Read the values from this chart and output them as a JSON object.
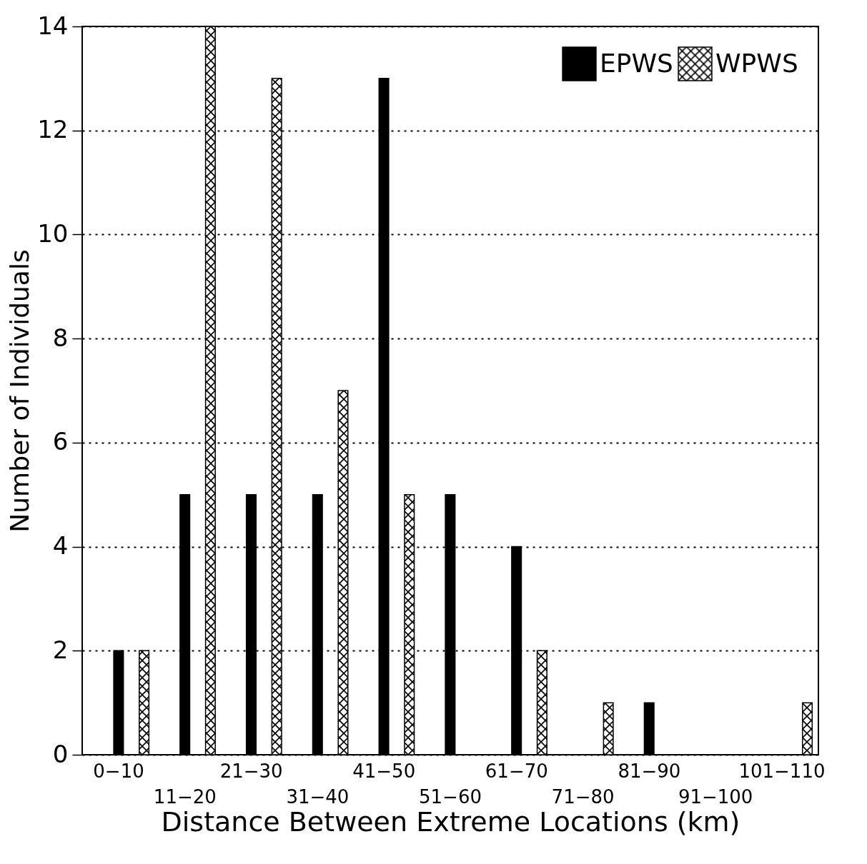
{
  "chart_data": {
    "type": "bar",
    "xlabel": "Distance Between Extreme Locations (km)",
    "ylabel": "Number of Individuals",
    "categories": [
      "0−10",
      "11−20",
      "21−30",
      "31−40",
      "41−50",
      "51−60",
      "61−70",
      "71−80",
      "81−90",
      "91−100",
      "101−110"
    ],
    "series": [
      {
        "name": "EPWS",
        "color": "#000000",
        "values": [
          2,
          5,
          5,
          5,
          13,
          5,
          4,
          0,
          1,
          0,
          0
        ]
      },
      {
        "name": "WPWS",
        "color": "#000000",
        "values": [
          2,
          14,
          13,
          7,
          5,
          0,
          2,
          1,
          0,
          0,
          1
        ]
      }
    ],
    "ylim": [
      0,
      14
    ],
    "yticks": [
      0,
      2,
      4,
      6,
      8,
      10,
      12,
      14
    ],
    "grid": "y",
    "legend": "top right"
  }
}
